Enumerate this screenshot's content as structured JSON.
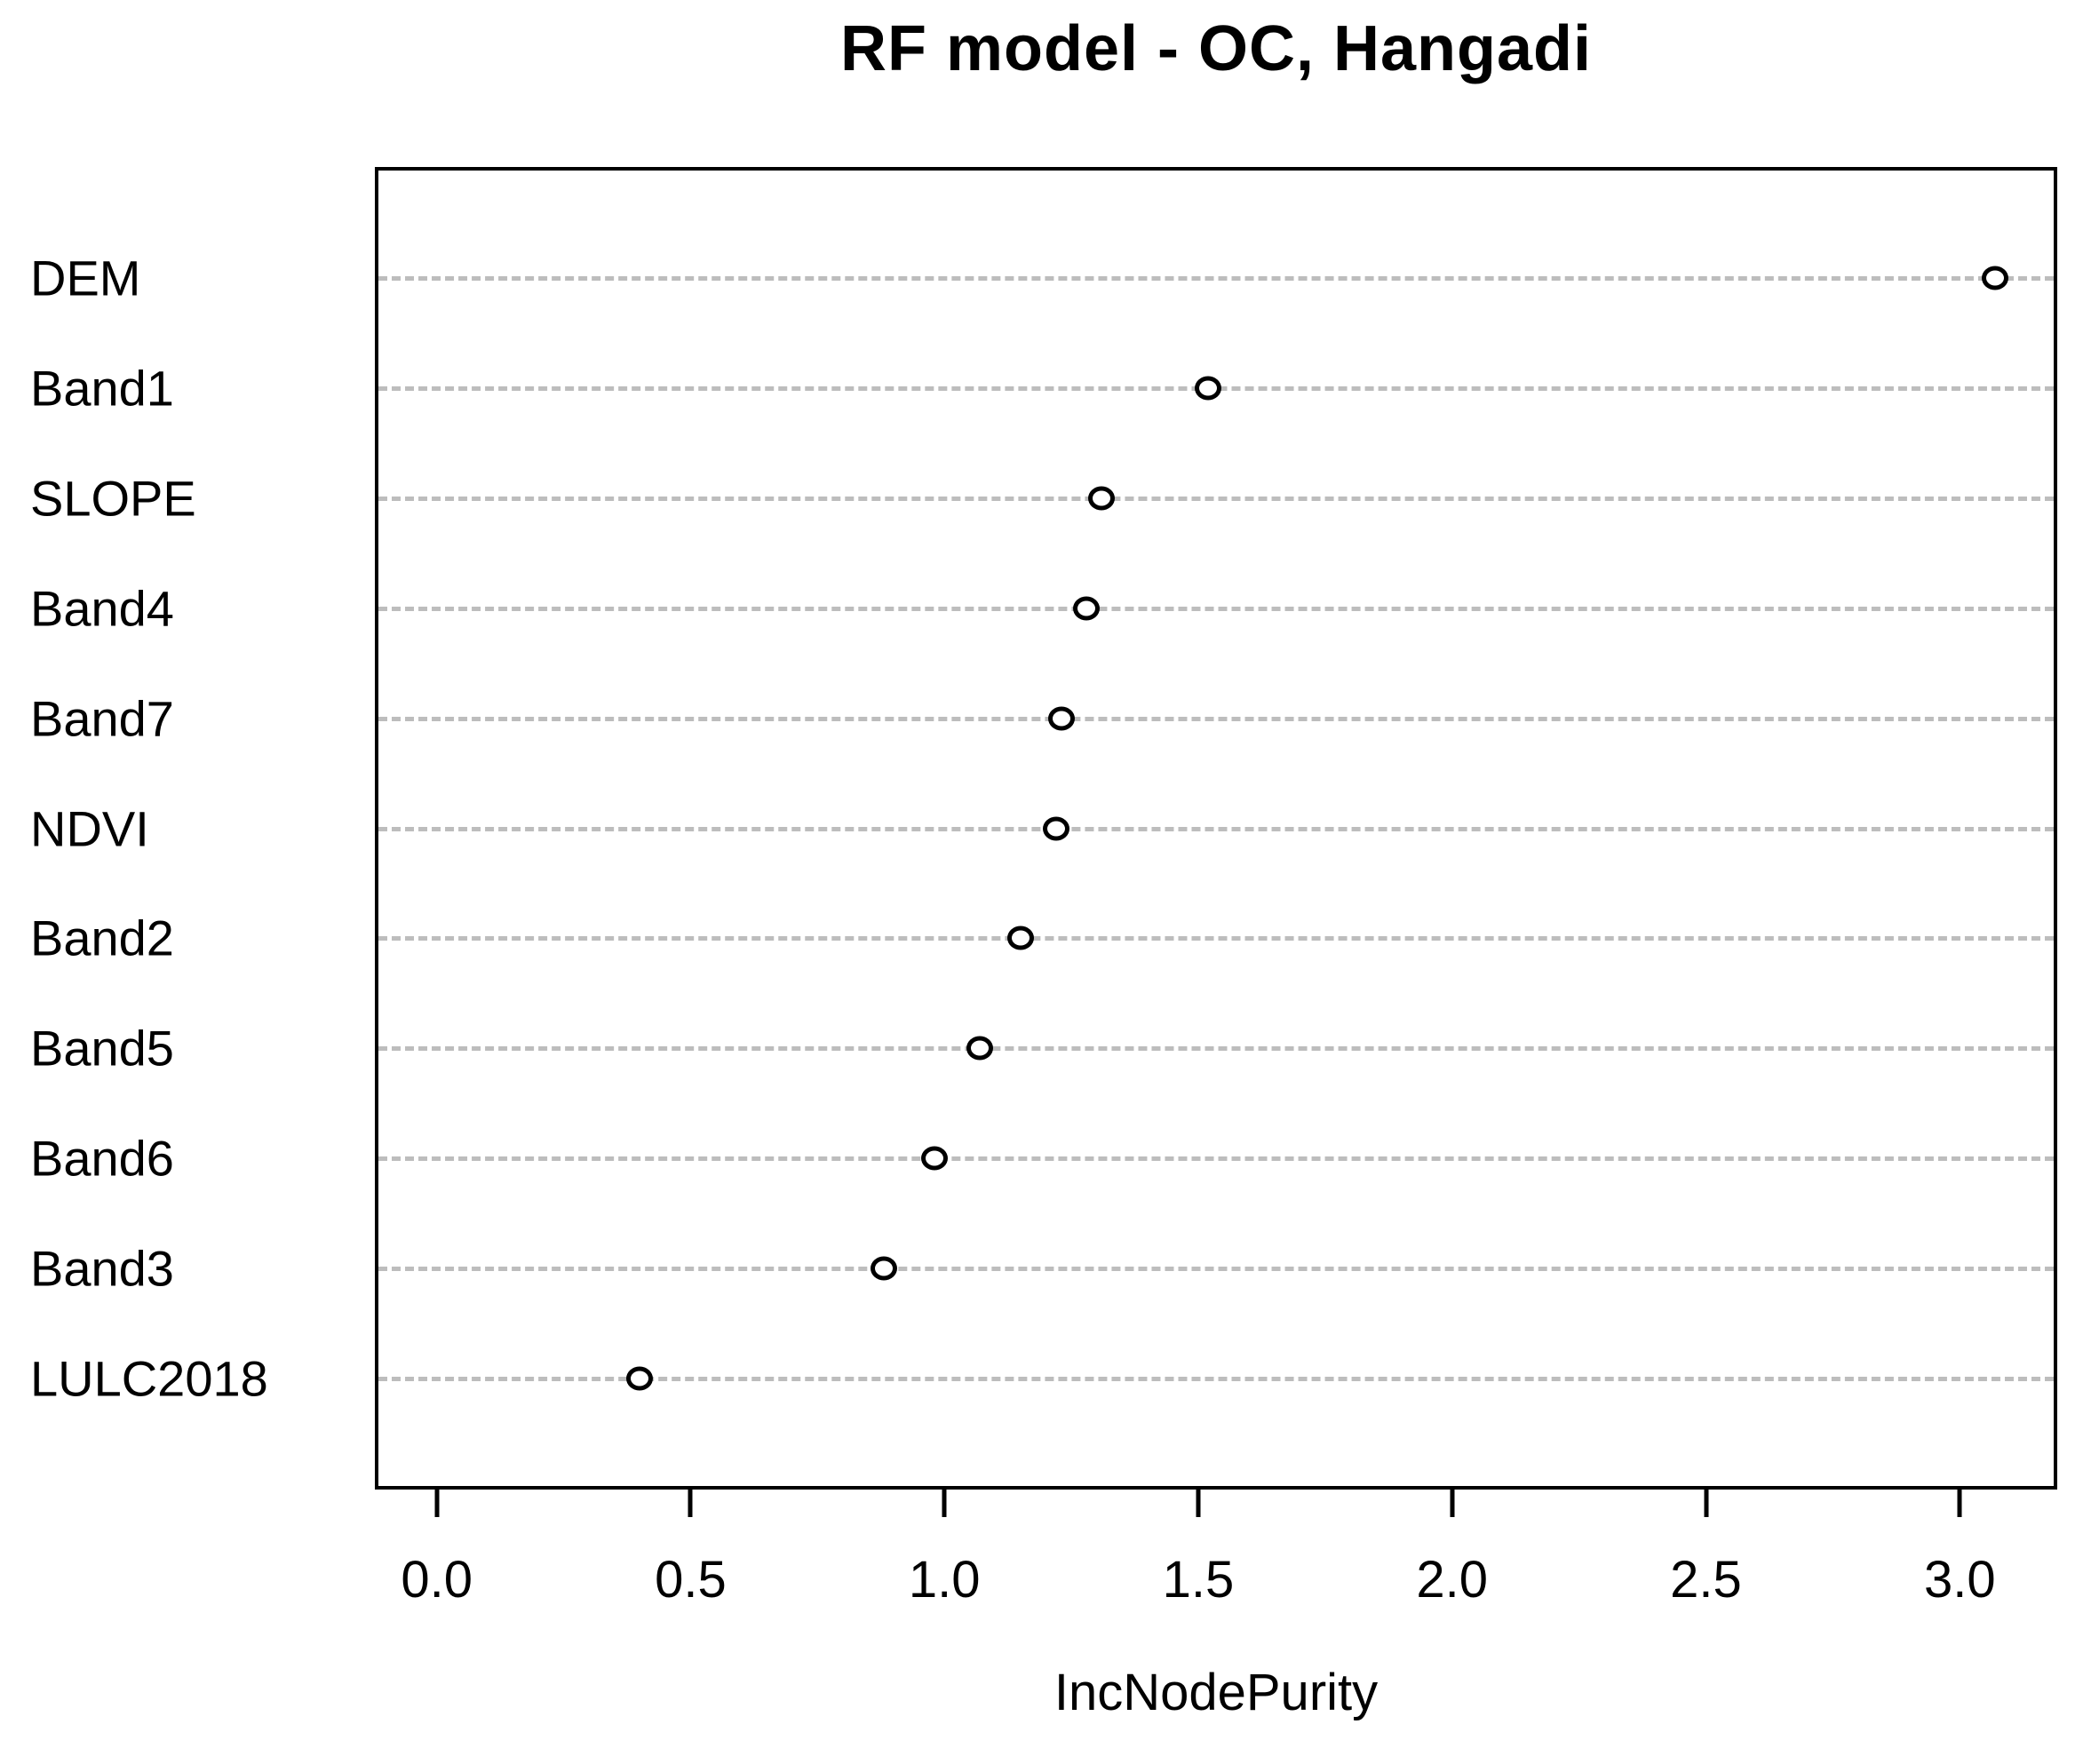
{
  "chart_data": {
    "type": "scatter",
    "subtype": "dotchart",
    "title": "RF model - OC, Hangadi",
    "xlabel": "IncNodePurity",
    "ylabel": "",
    "categories": [
      "DEM",
      "Band1",
      "SLOPE",
      "Band4",
      "Band7",
      "NDVI",
      "Band2",
      "Band5",
      "Band6",
      "Band3",
      "LULC2018"
    ],
    "values": [
      3.07,
      1.52,
      1.31,
      1.28,
      1.23,
      1.22,
      1.15,
      1.07,
      0.98,
      0.88,
      0.4
    ],
    "x_ticks": [
      0.0,
      0.5,
      1.0,
      1.5,
      2.0,
      2.5,
      3.0
    ],
    "x_tick_labels": [
      "0.0",
      "0.5",
      "1.0",
      "1.5",
      "2.0",
      "2.5",
      "3.0"
    ],
    "xlim": [
      -0.122,
      3.192
    ],
    "grid": "horizontal dashed line per category",
    "legend": "none",
    "marker": "open-circle",
    "colors": {
      "marker_stroke": "#000000",
      "marker_fill": "#ffffff",
      "grid": "#bdbdbd",
      "axis": "#000000",
      "text": "#000000",
      "background": "#ffffff"
    }
  }
}
